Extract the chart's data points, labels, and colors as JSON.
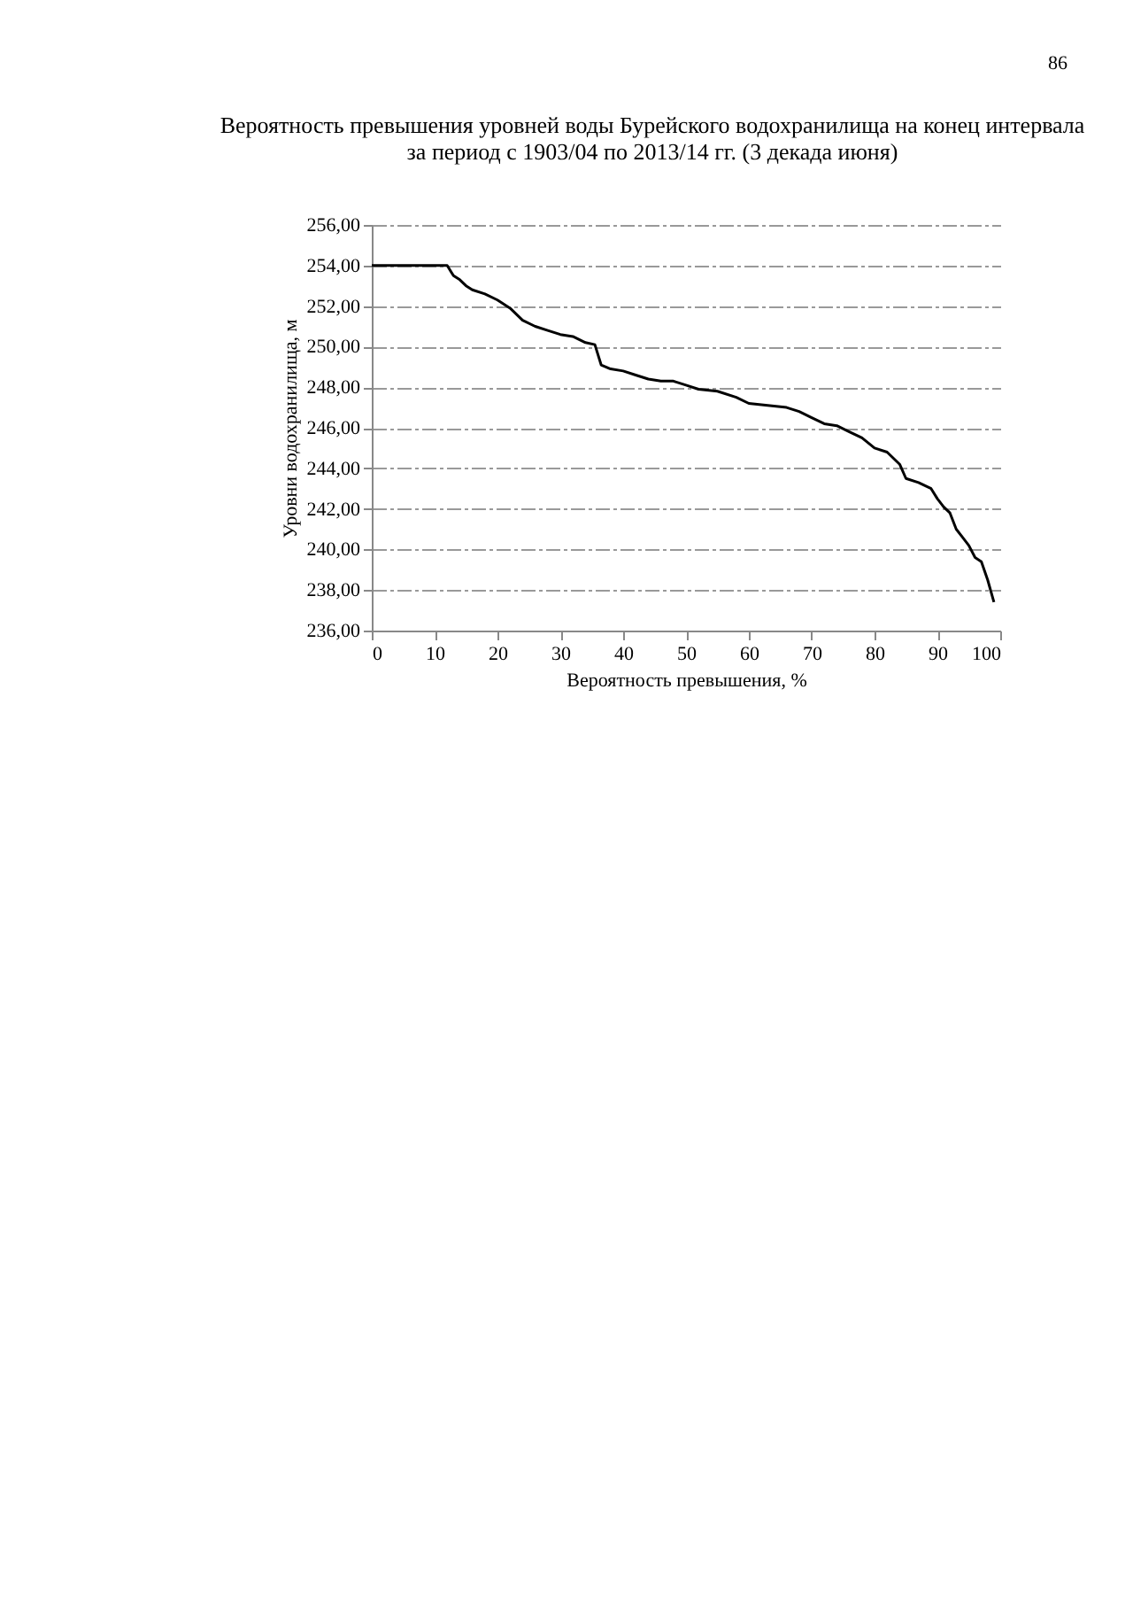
{
  "chart_data": {
    "type": "line",
    "title": [
      "Вероятность превышения уровней воды Бурейского водохранилища на конец интервала",
      "за период с 1903/04 по 2013/14 гг. (3 декада июня)"
    ],
    "xlabel": "Вероятность превышения, %",
    "ylabel": "Уровни водохранилища, м",
    "annotations": [
      "86"
    ],
    "x": [
      0,
      12,
      13,
      14,
      15,
      16,
      18,
      20,
      22,
      24,
      26,
      28,
      30,
      32,
      34,
      35.5,
      36.5,
      38,
      40,
      42,
      44,
      46,
      48,
      50,
      52,
      55,
      58,
      60,
      63,
      66,
      68,
      70,
      72,
      74,
      76,
      78,
      80,
      82,
      84,
      85,
      87,
      89,
      90,
      91,
      92,
      93,
      94,
      95,
      96,
      97,
      98,
      99
    ],
    "series": [
      {
        "color": "#000000",
        "values": [
          254,
          254,
          253.5,
          253.3,
          253,
          252.8,
          252.6,
          252.3,
          251.9,
          251.3,
          251,
          250.8,
          250.6,
          250.5,
          250.2,
          250.1,
          249.1,
          248.9,
          248.8,
          248.6,
          248.4,
          248.3,
          248.3,
          248.1,
          247.9,
          247.8,
          247.5,
          247.2,
          247.1,
          247,
          246.8,
          246.5,
          246.2,
          246.1,
          245.8,
          245.5,
          245,
          244.8,
          244.2,
          243.5,
          243.3,
          243,
          242.5,
          242.1,
          241.8,
          241,
          240.6,
          240.2,
          239.6,
          239.4,
          238.5,
          237.4
        ]
      }
    ],
    "xlim": [
      0,
      100
    ],
    "xticks": [
      0,
      10,
      20,
      30,
      40,
      50,
      60,
      70,
      80,
      90,
      100
    ],
    "ylim": [
      236,
      256
    ],
    "yticks": [
      {
        "value": 236,
        "label": "236,00"
      },
      {
        "value": 238,
        "label": "238,00"
      },
      {
        "value": 240,
        "label": "240,00"
      },
      {
        "value": 242,
        "label": "242,00"
      },
      {
        "value": 244,
        "label": "244,00"
      },
      {
        "value": 246,
        "label": "246,00"
      },
      {
        "value": 248,
        "label": "248,00"
      },
      {
        "value": 250,
        "label": "250,00"
      },
      {
        "value": 252,
        "label": "252,00"
      },
      {
        "value": 254,
        "label": "254,00"
      },
      {
        "value": 256,
        "label": "256,00"
      }
    ],
    "grid": "y",
    "marker": "none",
    "line_style": "solid"
  }
}
